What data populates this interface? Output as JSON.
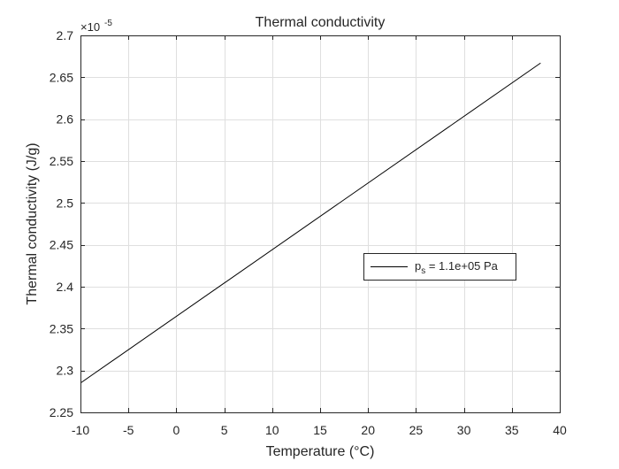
{
  "chart_data": {
    "type": "line",
    "title": "Thermal conductivity",
    "xlabel": "Temperature (°C)",
    "ylabel": "Thermal conductivity (J/g)",
    "xlim": [
      -10,
      40
    ],
    "ylim": [
      2.25,
      2.7
    ],
    "y_exponent_label": "×10",
    "y_exponent_power": "-5",
    "x_ticks": [
      -10,
      -5,
      0,
      5,
      10,
      15,
      20,
      25,
      30,
      35,
      40
    ],
    "y_ticks": [
      2.25,
      2.3,
      2.35,
      2.4,
      2.45,
      2.5,
      2.55,
      2.6,
      2.65,
      2.7
    ],
    "grid": true,
    "legend_position": "center-right",
    "series": [
      {
        "legend_main": "p",
        "legend_sub": "s",
        "legend_rest": " = 1.1e+05 Pa",
        "color": "#000000",
        "x": [
          -10,
          38
        ],
        "y": [
          2.285,
          2.667
        ]
      }
    ]
  }
}
